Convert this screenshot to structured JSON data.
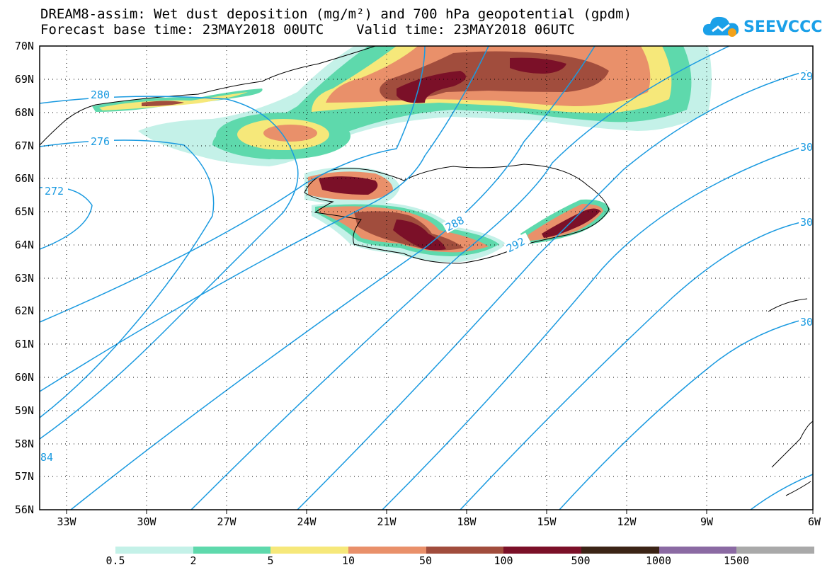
{
  "header": {
    "title_line1": "DREAM8-assim: Wet dust deposition (mg/m²) and 700 hPa geopotential (gpdm)",
    "title_line2": "Forecast base time: 23MAY2018 00UTC    Valid time: 23MAY2018 06UTC"
  },
  "logo": {
    "text": "SEEVCCC",
    "icon": "cloud-logo-icon"
  },
  "axes": {
    "lon_labels": [
      "33W",
      "30W",
      "27W",
      "24W",
      "21W",
      "18W",
      "15W",
      "12W",
      "9W",
      "6W"
    ],
    "lat_labels": [
      "70N",
      "69N",
      "68N",
      "67N",
      "66N",
      "65N",
      "64N",
      "63N",
      "62N",
      "61N",
      "60N",
      "59N",
      "58N",
      "57N",
      "56N"
    ]
  },
  "contour_labels": [
    "280",
    "276",
    "272",
    "288",
    "292",
    "29",
    "30",
    "30",
    "30",
    "84"
  ],
  "colorbar": {
    "labels": [
      "0.5",
      "2",
      "5",
      "10",
      "50",
      "100",
      "500",
      "1000",
      "1500"
    ],
    "colors": [
      "#c4f1e8",
      "#5ed9ac",
      "#f6e87a",
      "#e9906a",
      "#a14d3d",
      "#7b1028",
      "#3b2416",
      "#8b6aa3",
      "#a9a9a9"
    ]
  },
  "colors": {
    "contour": "#1a9ae0",
    "level_0_5": "#c4f1e8",
    "level_2": "#5ed9ac",
    "level_5": "#f6e87a",
    "level_10": "#e9906a",
    "level_50": "#a14d3d",
    "level_100": "#7b1028"
  }
}
